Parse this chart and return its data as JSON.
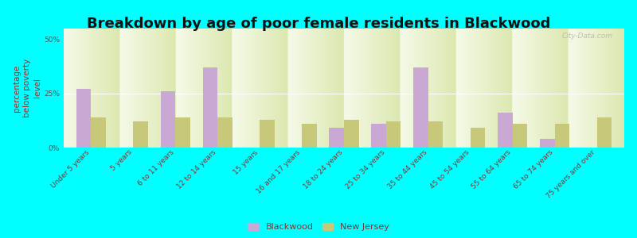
{
  "title": "Breakdown by age of poor female residents in Blackwood",
  "ylabel": "percentage\nbelow poverty\nlevel",
  "categories": [
    "Under 5 years",
    "5 years",
    "6 to 11 years",
    "12 to 14 years",
    "15 years",
    "16 and 17 years",
    "18 to 24 years",
    "25 to 34 years",
    "35 to 44 years",
    "45 to 54 years",
    "55 to 64 years",
    "65 to 74 years",
    "75 years and over"
  ],
  "blackwood": [
    27,
    0,
    26,
    37,
    0,
    0,
    9,
    11,
    37,
    0,
    16,
    4,
    0
  ],
  "new_jersey": [
    14,
    12,
    14,
    14,
    13,
    11,
    13,
    12,
    12,
    9,
    11,
    11,
    14
  ],
  "blackwood_color": "#c9a8d4",
  "new_jersey_color": "#c8c87a",
  "background_color": "#00ffff",
  "plot_bg_top": "#dce8b0",
  "plot_bg_bottom": "#f5fae8",
  "bar_width": 0.35,
  "ylim": [
    0,
    55
  ],
  "yticks": [
    0,
    25,
    50
  ],
  "ytick_labels": [
    "0%",
    "25%",
    "50%"
  ],
  "title_fontsize": 13,
  "axis_label_fontsize": 7.5,
  "tick_label_fontsize": 6.5,
  "legend_fontsize": 8,
  "watermark": "City-Data.com"
}
